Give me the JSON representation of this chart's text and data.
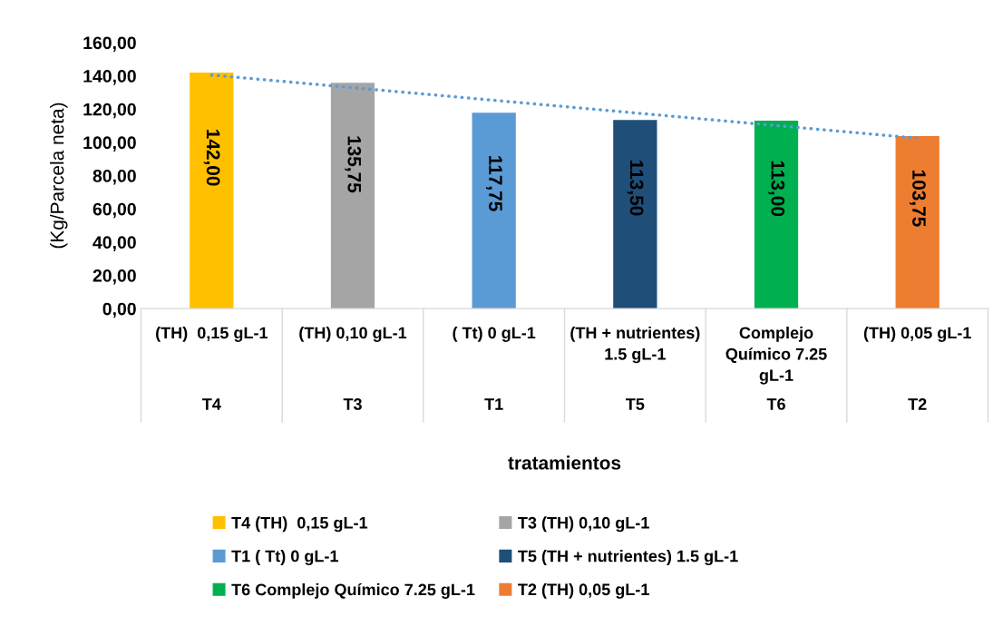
{
  "chart_data": {
    "type": "bar",
    "ylabel": "(Kg/Parcela neta)",
    "xlabel": "tratamientos",
    "categories": [
      "(TH)  0,15 gL-1",
      "(TH) 0,10 gL-1",
      "( Tt) 0 gL-1",
      "(TH + nutrientes) 1.5 gL-1",
      "Complejo Químico 7.25 gL-1",
      "(TH) 0,05 gL-1"
    ],
    "annotations": [
      "T4",
      "T3",
      "T1",
      "T5",
      "T6",
      "T2"
    ],
    "series": [
      {
        "name": "T4 (TH)  0,15 gL-1",
        "color": "#ffc000",
        "values": [
          142.0,
          null,
          null,
          null,
          null,
          null
        ],
        "value_labels": [
          "142,00",
          null,
          null,
          null,
          null,
          null
        ]
      },
      {
        "name": "T3 (TH) 0,10 gL-1",
        "color": "#a5a5a5",
        "values": [
          null,
          135.75,
          null,
          null,
          null,
          null
        ],
        "value_labels": [
          null,
          "135,75",
          null,
          null,
          null,
          null
        ]
      },
      {
        "name": "T1 ( Tt) 0 gL-1",
        "color": "#5b9bd5",
        "values": [
          null,
          null,
          117.75,
          null,
          null,
          null
        ],
        "value_labels": [
          null,
          null,
          "117,75",
          null,
          null,
          null
        ]
      },
      {
        "name": "T5 (TH + nutrientes) 1.5 gL-1",
        "color": "#1f4e79",
        "values": [
          null,
          null,
          null,
          113.5,
          null,
          null
        ],
        "value_labels": [
          null,
          null,
          null,
          "113,50",
          null,
          null
        ]
      },
      {
        "name": "T6 Complejo Químico 7.25 gL-1",
        "color": "#00b050",
        "values": [
          null,
          null,
          null,
          null,
          113.0,
          null
        ],
        "value_labels": [
          null,
          null,
          null,
          null,
          "113,00",
          null
        ]
      },
      {
        "name": "T2 (TH) 0,05 gL-1",
        "color": "#ed7d31",
        "values": [
          null,
          null,
          null,
          null,
          null,
          103.75
        ],
        "value_labels": [
          null,
          null,
          null,
          null,
          null,
          "103,75"
        ]
      },
      {
        "type": "line",
        "color": "#5b9bd5",
        "line_style": "dotted",
        "values": [
          140.5,
          132.9,
          125.3,
          117.7,
          110.1,
          102.5
        ]
      }
    ],
    "ylim": [
      0,
      160
    ],
    "yticks": [
      {
        "value": 0,
        "label": "0,00"
      },
      {
        "value": 20,
        "label": "20,00"
      },
      {
        "value": 40,
        "label": "40,00"
      },
      {
        "value": 60,
        "label": "60,00"
      },
      {
        "value": 80,
        "label": "80,00"
      },
      {
        "value": 100,
        "label": "100,00"
      },
      {
        "value": 120,
        "label": "120,00"
      },
      {
        "value": 140,
        "label": "140,00"
      },
      {
        "value": 160,
        "label": "160,00"
      }
    ],
    "grid": false,
    "legend": "bottom"
  }
}
